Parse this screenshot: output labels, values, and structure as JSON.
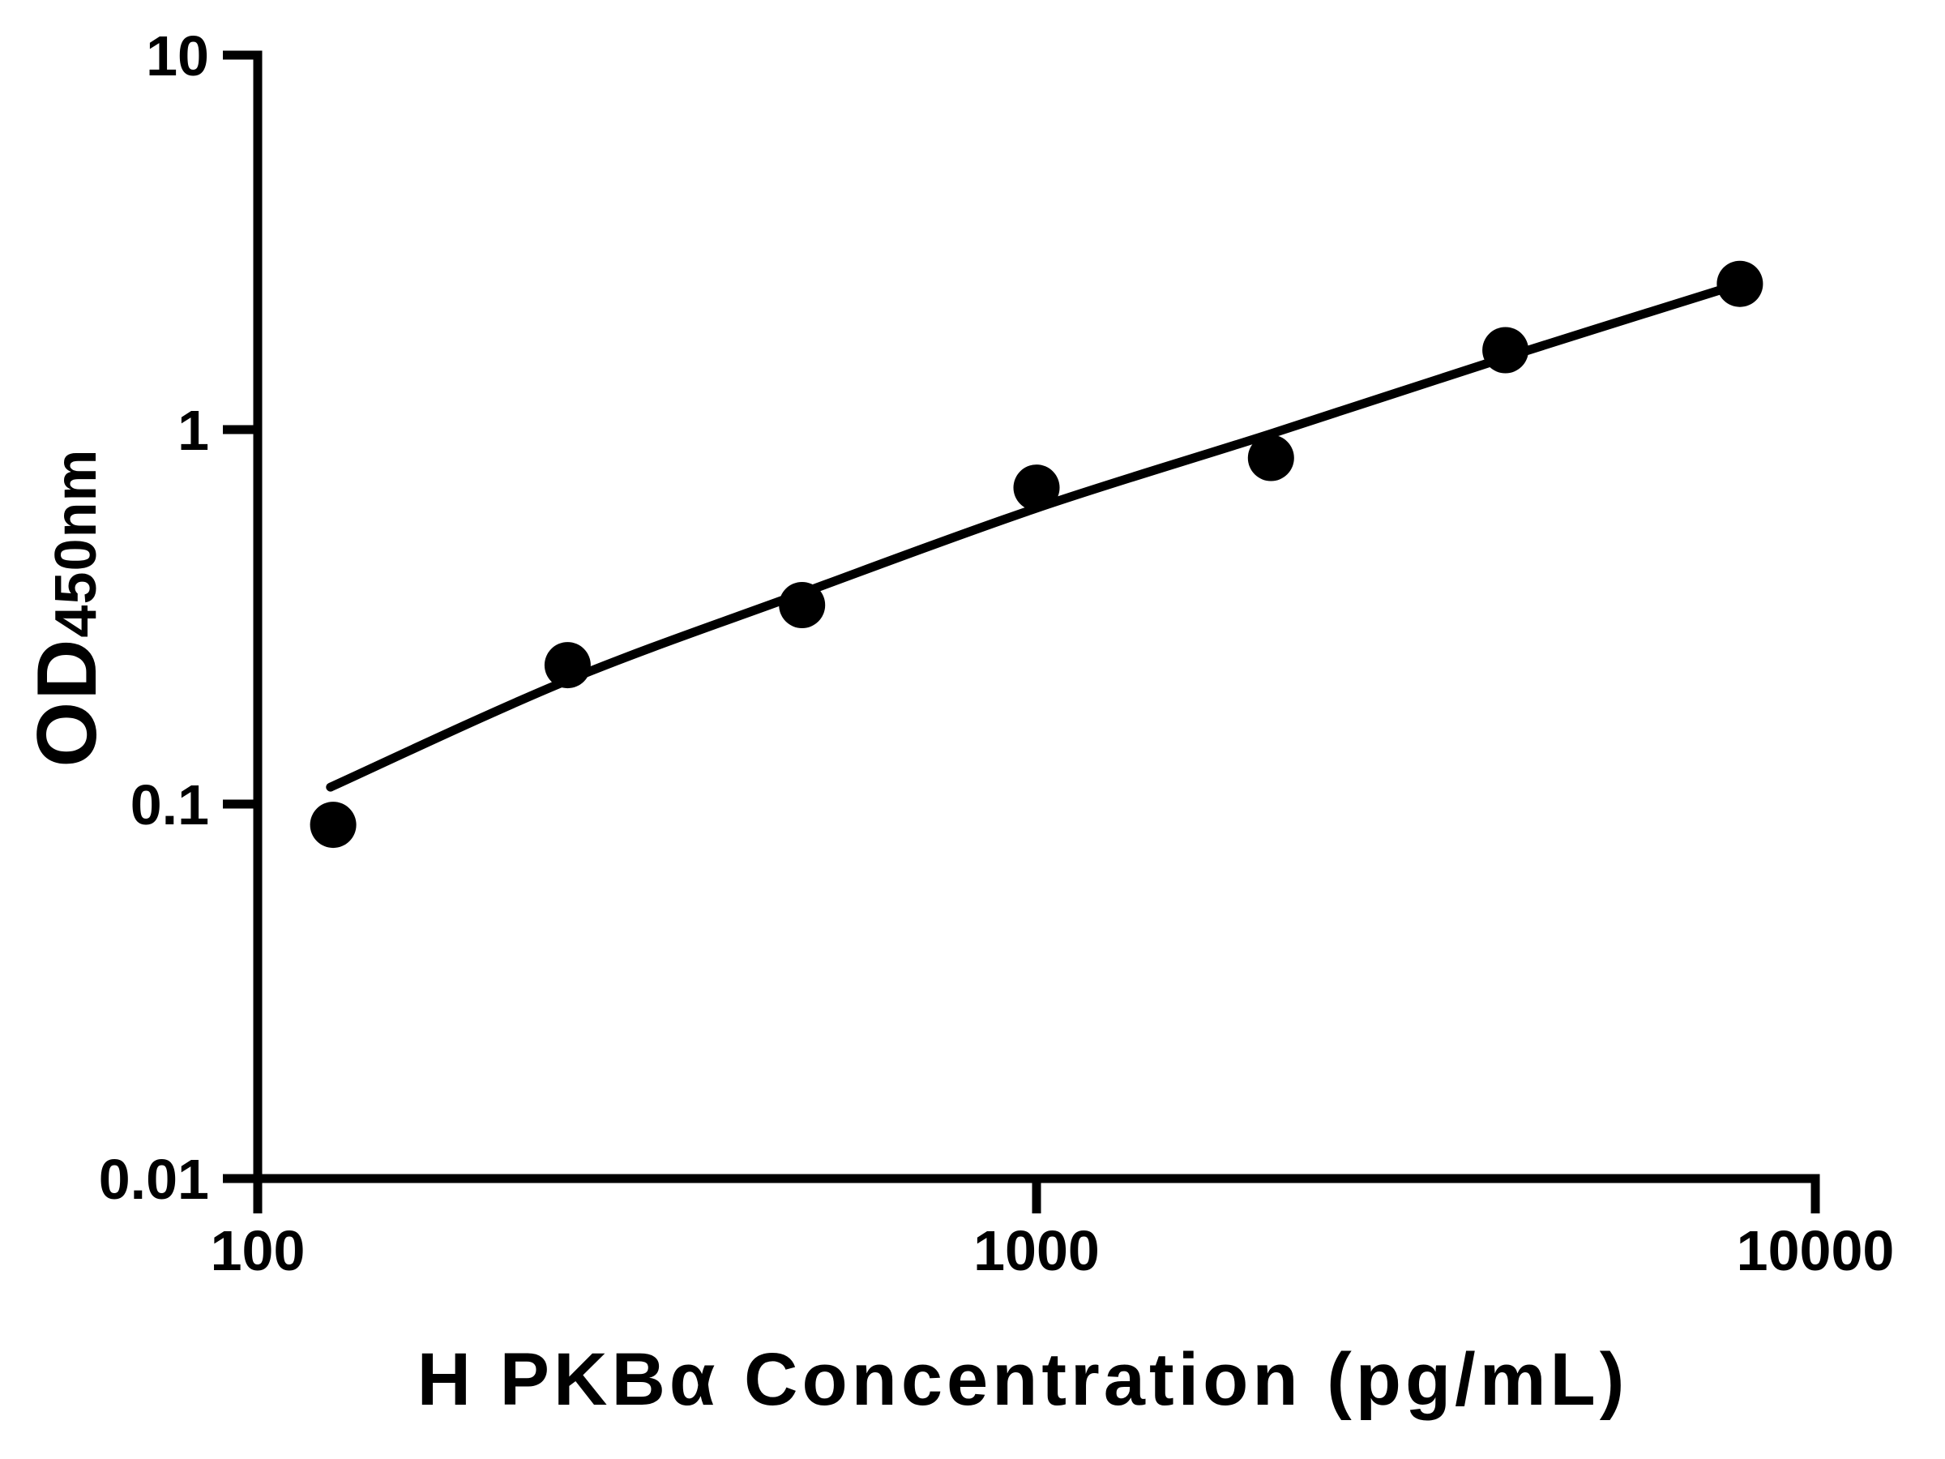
{
  "figure": {
    "background_color": "#ffffff",
    "ink_color": "#000000"
  },
  "chart_data": {
    "type": "scatter",
    "title": "",
    "xlabel": "H PKBα Concentration (pg/mL)",
    "ylabel": "OD450nm",
    "ylabel_main": "OD",
    "ylabel_sub": "450nm",
    "x_scale": "log",
    "y_scale": "log",
    "xlim": [
      100,
      10000
    ],
    "ylim": [
      0.01,
      10
    ],
    "grid": false,
    "legend_position": "none",
    "x_ticks": [
      {
        "value": 100,
        "label": "100"
      },
      {
        "value": 1000,
        "label": "1000"
      },
      {
        "value": 10000,
        "label": "10000"
      }
    ],
    "y_ticks": [
      {
        "value": 10,
        "label": "10"
      },
      {
        "value": 1,
        "label": "1"
      },
      {
        "value": 0.1,
        "label": "0.1"
      },
      {
        "value": 0.01,
        "label": "0.01"
      }
    ],
    "series": [
      {
        "name": "standard-points",
        "marker": "filled-circle",
        "marker_color": "#000000",
        "points": [
          {
            "x": 125,
            "y": 0.088
          },
          {
            "x": 250,
            "y": 0.235
          },
          {
            "x": 500,
            "y": 0.34
          },
          {
            "x": 1000,
            "y": 0.7
          },
          {
            "x": 2000,
            "y": 0.84
          },
          {
            "x": 4000,
            "y": 1.63
          },
          {
            "x": 8000,
            "y": 2.45
          }
        ]
      }
    ],
    "trend_line": {
      "name": "fitted-standard-curve",
      "color": "#000000",
      "points": [
        [
          124,
          0.111
        ],
        [
          250,
          0.214
        ],
        [
          500,
          0.366
        ],
        [
          1000,
          0.617
        ],
        [
          2000,
          0.975
        ],
        [
          4000,
          1.558
        ],
        [
          8000,
          2.45
        ]
      ]
    }
  }
}
